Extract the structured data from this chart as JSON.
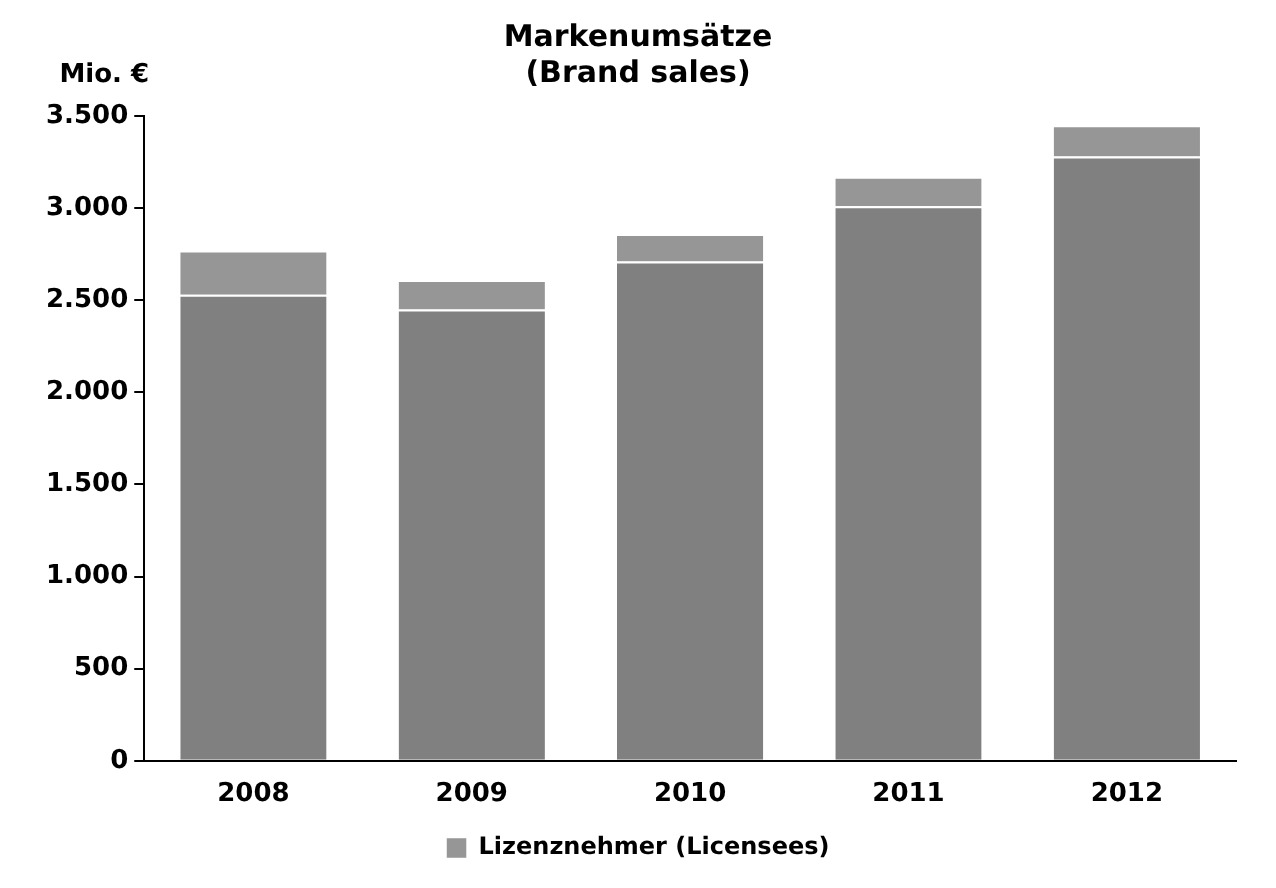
{
  "chart_data": {
    "type": "bar",
    "title": "Markenumsätze\n(Brand sales)",
    "ylabel": "Mio. €",
    "categories": [
      "2008",
      "2009",
      "2010",
      "2011",
      "2012"
    ],
    "series": [
      {
        "color": "#808080",
        "values": [
          2530,
          2450,
          2710,
          3010,
          3280
        ]
      },
      {
        "name": "Lizenznehmer (Licensees)",
        "color": "#969696",
        "values": [
          240,
          160,
          150,
          160,
          170
        ]
      }
    ],
    "stacked": true,
    "ylim": [
      0,
      3500
    ],
    "yticks": [
      0,
      500,
      {
        "value": 1000,
        "label": "1.000"
      },
      {
        "value": 1500,
        "label": "1.500"
      },
      {
        "value": 2000,
        "label": "2.000"
      },
      {
        "value": 2500,
        "label": "2.500"
      },
      {
        "value": 3000,
        "label": "3.000"
      },
      {
        "value": 3500,
        "label": "3.500"
      }
    ],
    "grid": false,
    "legend": "bottom"
  }
}
